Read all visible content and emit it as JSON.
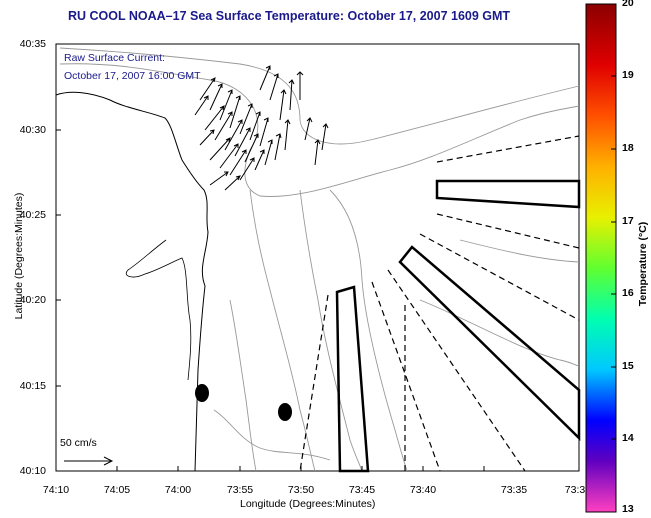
{
  "title": "RU COOL  NOAA–17  Sea Surface Temperature:  October 17, 2007 1609 GMT",
  "current_legend": {
    "line1": "Raw Surface Current:",
    "line2": "October 17, 2007 16:00 GMT"
  },
  "axes": {
    "ylabel": "Latitude (Degrees:Minutes)",
    "xlabel": "Longitude (Degrees:Minutes)",
    "yticks": [
      "40:35",
      "40:30",
      "40:25",
      "40:20",
      "40:15",
      "40:10"
    ],
    "xticks": [
      "74:10",
      "74:05",
      "74:00",
      "73:55",
      "73:50",
      "73:45",
      "73:40",
      "73:35",
      "73:3"
    ]
  },
  "colorbar": {
    "label": "Temperature (°C)",
    "ticks": [
      "20",
      "19",
      "18",
      "17",
      "16",
      "15",
      "14",
      "13"
    ],
    "range": [
      13,
      20
    ],
    "colors": [
      "#8b0000",
      "#ff0000",
      "#ff8000",
      "#ffff00",
      "#00ff00",
      "#00ffff",
      "#0000ff",
      "#ff00ff"
    ]
  },
  "scale": {
    "label": "50 cm/s"
  }
}
